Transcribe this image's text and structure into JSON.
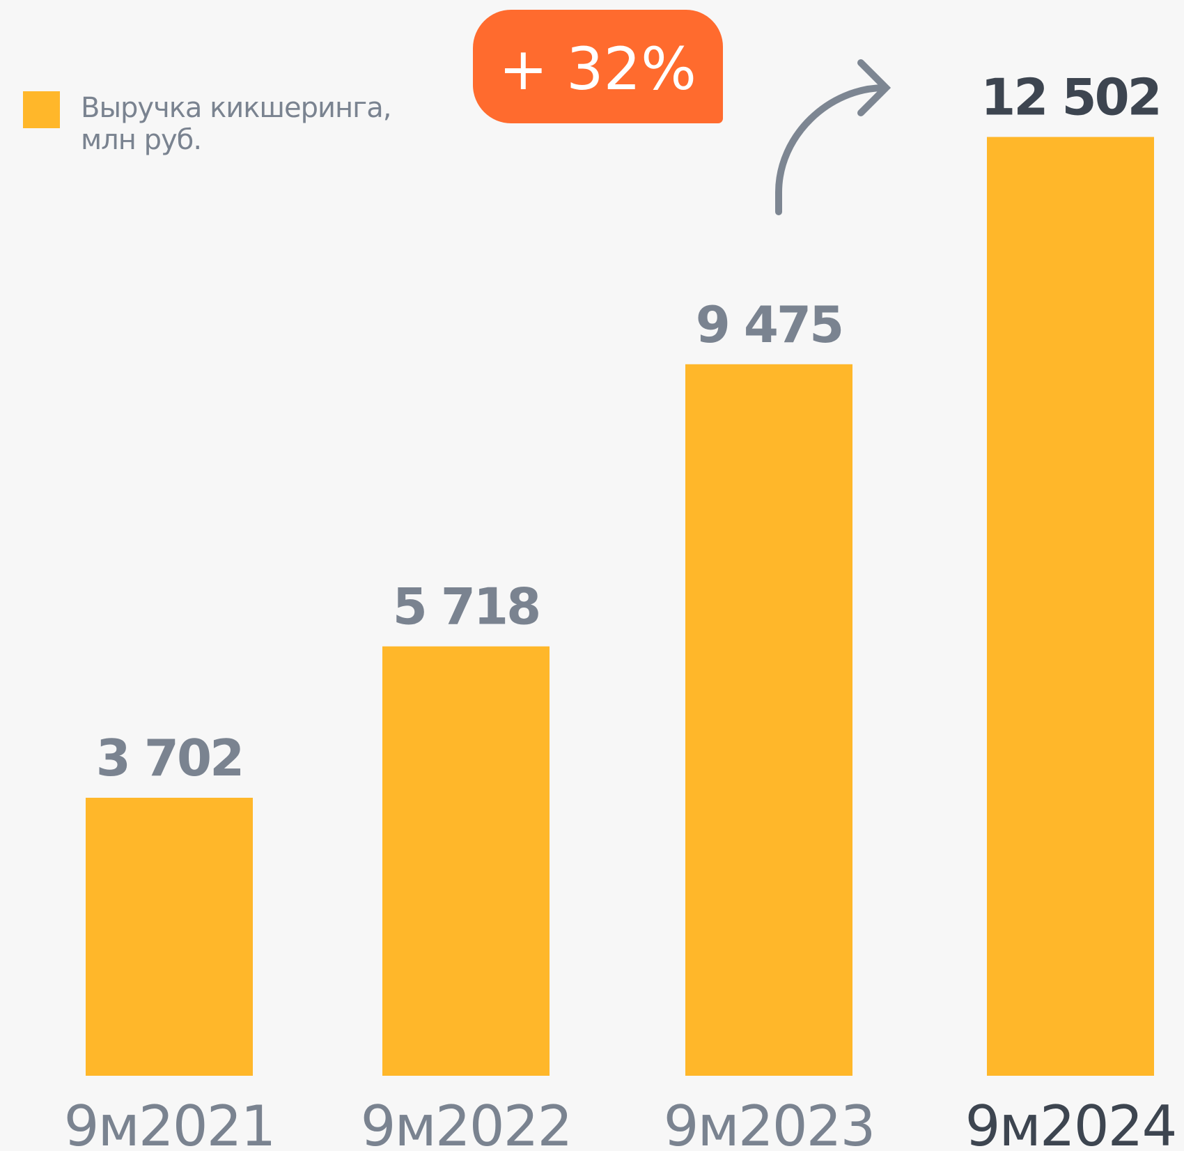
{
  "chart_data": {
    "type": "bar",
    "categories": [
      "9м2021",
      "9м2022",
      "9м2023",
      "9м2024"
    ],
    "series": [
      {
        "name": "Выручка кикшеринга, млн руб.",
        "color": "#ffb72a",
        "values": [
          3702,
          5718,
          9475,
          12502
        ],
        "value_labels": [
          "3 702",
          "5 718",
          "9 475",
          "12 502"
        ]
      }
    ],
    "ylim": [
      0,
      12600
    ],
    "annotation": "+ 32%",
    "annotation_color": "#ff6b2e"
  }
}
